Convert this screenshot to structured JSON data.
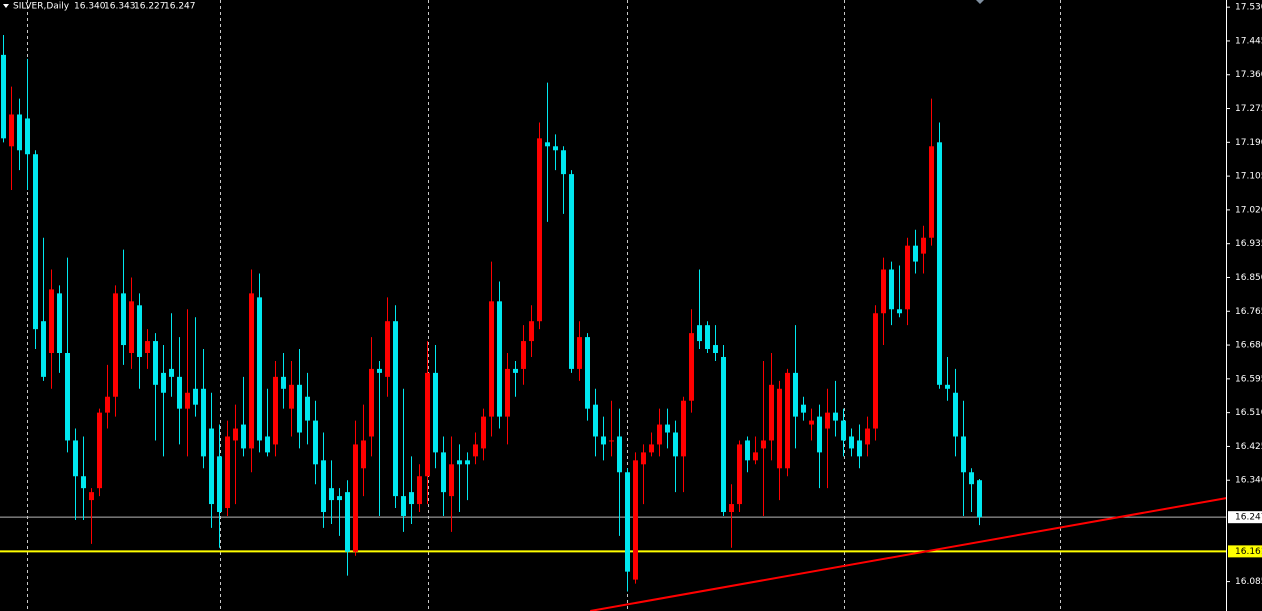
{
  "chart_data": {
    "type": "candlestick",
    "symbol": "SILVER,Daily",
    "header_values": [
      {
        "value": 16.34,
        "label": "16.340"
      },
      16.343,
      16.227,
      16.247
    ],
    "up_color": "#ff0000",
    "down_color": "#00e8f0",
    "grid": true,
    "ylim": [
      16.011,
      17.548
    ],
    "yticks": [
      {
        "value": 17.53,
        "label": "17.530"
      },
      17.445,
      {
        "value": 17.36,
        "label": "17.360"
      },
      17.275,
      {
        "value": 17.19,
        "label": "17.190"
      },
      17.105,
      {
        "value": 17.02,
        "label": "17.020"
      },
      16.935,
      {
        "value": 16.85,
        "label": "16.850"
      },
      16.765,
      {
        "value": 16.68,
        "label": "16.680"
      },
      16.595,
      {
        "value": 16.51,
        "label": "16.510"
      },
      16.425,
      {
        "value": 16.34,
        "label": "16.340"
      },
      16.085
    ],
    "open": [
      17.41,
      17.18,
      17.26,
      17.25,
      17.16,
      16.74,
      16.66,
      16.81,
      16.66,
      16.44,
      16.35,
      16.29,
      16.32,
      16.51,
      16.55,
      16.81,
      16.66,
      16.78,
      16.66,
      16.69,
      16.61,
      16.62,
      16.6,
      16.52,
      16.57,
      16.57,
      16.47,
      16.4,
      16.27,
      16.44,
      16.48,
      16.42,
      16.8,
      16.45,
      16.43,
      16.6,
      16.52,
      16.58,
      16.55,
      16.49,
      16.39,
      16.32,
      16.3,
      16.31,
      16.16,
      16.37,
      16.45,
      16.62,
      16.6,
      16.74,
      16.3,
      16.31,
      16.28,
      16.35,
      16.61,
      16.41,
      16.3,
      16.39,
      16.39,
      16.4,
      16.42,
      16.5,
      16.79,
      16.5,
      16.62,
      16.62,
      16.69,
      16.74,
      17.19,
      17.18,
      17.17,
      17.11,
      16.62,
      16.7,
      16.53,
      16.45,
      16.44,
      16.45,
      16.36,
      16.09,
      16.38,
      16.41,
      16.43,
      16.48,
      16.46,
      16.4,
      16.54,
      16.73,
      16.73,
      16.68,
      16.65,
      16.26,
      16.28,
      16.44,
      16.39,
      16.42,
      16.44,
      16.37,
      16.37,
      16.61,
      16.53,
      16.48,
      16.5,
      16.47,
      16.51,
      16.49,
      16.45,
      16.44,
      16.43,
      16.47,
      16.76,
      16.87,
      16.77,
      16.77,
      16.93,
      16.91,
      16.95,
      17.19,
      16.58,
      16.56,
      16.45,
      16.36,
      16.34
    ],
    "high": [
      17.46,
      17.33,
      17.3,
      17.4,
      17.17,
      16.95,
      16.87,
      16.83,
      16.9,
      16.47,
      16.45,
      16.32,
      16.52,
      16.63,
      16.83,
      16.92,
      16.85,
      16.81,
      16.72,
      16.71,
      16.68,
      16.76,
      16.7,
      16.77,
      16.75,
      16.67,
      16.56,
      16.48,
      16.49,
      16.53,
      16.6,
      16.87,
      16.86,
      16.57,
      16.64,
      16.66,
      16.64,
      16.67,
      16.61,
      16.54,
      16.46,
      16.39,
      16.32,
      16.34,
      16.49,
      16.53,
      16.7,
      16.64,
      16.8,
      16.78,
      16.57,
      16.4,
      16.38,
      16.69,
      16.68,
      16.45,
      16.45,
      16.43,
      16.41,
      16.46,
      16.52,
      16.89,
      16.84,
      16.66,
      16.64,
      16.73,
      16.78,
      17.24,
      17.34,
      17.21,
      17.18,
      17.12,
      16.74,
      16.71,
      16.57,
      16.5,
      16.54,
      16.52,
      16.37,
      16.41,
      16.43,
      16.46,
      16.52,
      16.52,
      16.49,
      16.55,
      16.77,
      16.87,
      16.74,
      16.73,
      16.68,
      16.33,
      16.44,
      16.45,
      16.45,
      16.64,
      16.66,
      16.59,
      16.62,
      16.73,
      16.55,
      16.52,
      16.53,
      16.57,
      16.59,
      16.52,
      16.47,
      16.48,
      16.5,
      16.78,
      16.9,
      16.89,
      16.88,
      16.95,
      16.97,
      16.98,
      17.3,
      17.24,
      16.65,
      16.62,
      16.54,
      16.37,
      16.343
    ],
    "low": [
      17.19,
      17.07,
      17.12,
      17.07,
      16.67,
      16.59,
      16.57,
      16.61,
      16.41,
      16.24,
      16.24,
      16.18,
      16.3,
      16.47,
      16.5,
      16.63,
      16.62,
      16.57,
      16.62,
      16.44,
      16.4,
      16.55,
      16.43,
      16.4,
      16.5,
      16.37,
      16.22,
      16.17,
      16.25,
      16.28,
      16.4,
      16.36,
      16.41,
      16.4,
      16.4,
      16.52,
      16.45,
      16.42,
      16.43,
      16.33,
      16.22,
      16.23,
      16.2,
      16.1,
      16.15,
      16.3,
      16.4,
      16.25,
      16.55,
      16.27,
      16.21,
      16.23,
      16.26,
      16.28,
      16.37,
      16.25,
      16.21,
      16.26,
      16.29,
      16.38,
      16.39,
      16.45,
      16.47,
      16.43,
      16.55,
      16.58,
      16.65,
      16.72,
      16.99,
      17.12,
      17.01,
      16.61,
      16.59,
      16.49,
      16.4,
      16.39,
      16.4,
      16.2,
      16.06,
      16.08,
      16.28,
      16.4,
      16.4,
      16.42,
      16.31,
      16.31,
      16.51,
      16.67,
      16.66,
      16.64,
      16.25,
      16.17,
      16.26,
      16.36,
      16.38,
      16.25,
      16.39,
      16.29,
      16.35,
      16.42,
      16.49,
      16.44,
      16.32,
      16.32,
      16.45,
      16.4,
      16.4,
      16.37,
      16.4,
      16.44,
      16.68,
      16.73,
      16.75,
      16.73,
      16.86,
      16.86,
      16.93,
      16.57,
      16.54,
      16.4,
      16.25,
      16.26,
      16.227
    ],
    "close": [
      17.2,
      17.26,
      17.17,
      17.16,
      16.72,
      16.6,
      16.82,
      16.66,
      16.44,
      16.35,
      16.32,
      16.31,
      16.51,
      16.55,
      16.81,
      16.68,
      16.79,
      16.65,
      16.69,
      16.58,
      16.56,
      16.6,
      16.52,
      16.56,
      16.53,
      16.4,
      16.28,
      16.26,
      16.45,
      16.47,
      16.42,
      16.81,
      16.44,
      16.41,
      16.6,
      16.57,
      16.58,
      16.46,
      16.49,
      16.38,
      16.26,
      16.29,
      16.29,
      16.16,
      16.43,
      16.44,
      16.62,
      16.61,
      16.74,
      16.3,
      16.25,
      16.28,
      16.35,
      16.61,
      16.41,
      16.31,
      16.38,
      16.38,
      16.38,
      16.43,
      16.5,
      16.79,
      16.5,
      16.62,
      16.61,
      16.69,
      16.74,
      17.2,
      17.18,
      17.17,
      17.11,
      16.62,
      16.7,
      16.52,
      16.45,
      16.43,
      16.44,
      16.36,
      16.11,
      16.39,
      16.41,
      16.43,
      16.48,
      16.46,
      16.4,
      16.54,
      16.71,
      16.69,
      16.67,
      16.66,
      16.26,
      16.28,
      16.43,
      16.39,
      16.41,
      16.44,
      16.58,
      16.57,
      16.61,
      16.5,
      16.51,
      16.49,
      16.41,
      16.51,
      16.49,
      16.44,
      16.42,
      16.4,
      16.47,
      16.76,
      16.87,
      16.77,
      16.76,
      16.93,
      16.89,
      16.95,
      17.18,
      16.58,
      16.57,
      16.45,
      16.36,
      16.33,
      16.247
    ],
    "bid_line": {
      "value": 16.247,
      "color": "#b8b8b8"
    },
    "level_line": {
      "value": 16.161,
      "color": "#ffff00"
    },
    "trendline": {
      "color": "#ff0000",
      "x": [
        73.4,
        152.9
      ],
      "y": [
        16.011,
        16.295
      ]
    }
  }
}
